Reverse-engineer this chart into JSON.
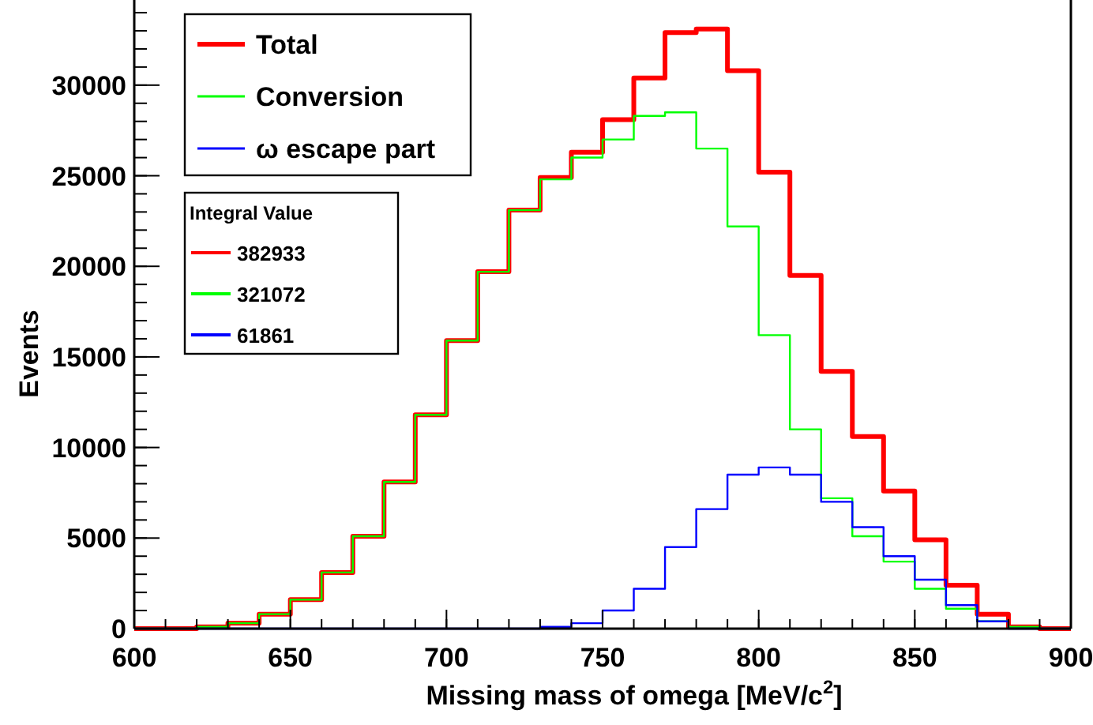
{
  "chart_data": {
    "type": "histogram",
    "xlabel": "Missing mass of omega [MeV/c$^{2}$]",
    "ylabel": "Events",
    "bins": [
      600,
      610,
      620,
      630,
      640,
      650,
      660,
      670,
      680,
      690,
      700,
      710,
      720,
      730,
      740,
      750,
      760,
      770,
      780,
      790,
      800,
      810,
      820,
      830,
      840,
      850,
      860,
      870,
      880,
      890,
      900
    ],
    "series": [
      {
        "name": "Total",
        "color": "#ff0000",
        "values": [
          0,
          0,
          100,
          300,
          800,
          1600,
          3100,
          5100,
          8100,
          11800,
          15900,
          19700,
          23100,
          24900,
          26300,
          28100,
          30400,
          32900,
          33100,
          30800,
          25200,
          19500,
          14200,
          10600,
          7600,
          4900,
          2400,
          800,
          100,
          0
        ]
      },
      {
        "name": "Conversion",
        "color": "#00ff00",
        "values": [
          0,
          0,
          100,
          300,
          800,
          1600,
          3100,
          5100,
          8100,
          11800,
          15900,
          19700,
          23100,
          24800,
          26000,
          27000,
          28300,
          28500,
          26500,
          22200,
          16200,
          11000,
          7200,
          5100,
          3700,
          2200,
          1100,
          400,
          100,
          0
        ]
      },
      {
        "name": "ω escape part",
        "color": "#0000ff",
        "values": [
          0,
          0,
          0,
          0,
          0,
          0,
          0,
          0,
          0,
          0,
          0,
          0,
          0,
          100,
          300,
          1000,
          2200,
          4500,
          6600,
          8500,
          8900,
          8500,
          7000,
          5600,
          4000,
          2700,
          1300,
          400,
          0,
          0
        ]
      }
    ],
    "xlim": [
      600,
      900
    ],
    "xticks": [
      600,
      650,
      700,
      750,
      800,
      850,
      900
    ],
    "ylim": [
      0,
      34700
    ],
    "yticks": [
      0,
      5000,
      10000,
      15000,
      20000,
      25000,
      30000
    ],
    "legend": "top left",
    "grid": false,
    "annotations": [
      "Integral Value",
      "382933",
      "321072",
      "61861"
    ]
  }
}
